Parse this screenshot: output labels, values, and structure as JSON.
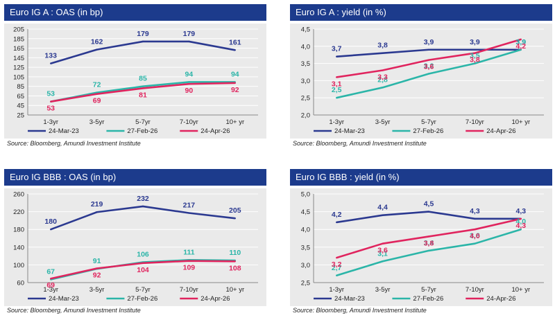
{
  "colors": {
    "header_bg": "#1c3b8c",
    "plot_bg": "#eaeaea",
    "grid": "#ffffff",
    "series": [
      "#2b3990",
      "#2bb5a8",
      "#e0245e"
    ],
    "label_colors": [
      "#2b3990",
      "#2bb5a8",
      "#e0245e"
    ]
  },
  "chart_data": [
    {
      "type": "line",
      "title": "Euro IG A : OAS (in bp)",
      "source": "Source: Bloomberg, Amundi Investment Institute",
      "categories": [
        "1-3yr",
        "3-5yr",
        "5-7yr",
        "7-10yr",
        "10+ yr"
      ],
      "yticks": [
        "25",
        "45",
        "65",
        "85",
        "105",
        "125",
        "145",
        "165",
        "185",
        "205"
      ],
      "ylim": [
        25,
        205
      ],
      "grid": true,
      "legend_position": "bottom",
      "series": [
        {
          "name": "24-Mar-23",
          "values": [
            133,
            162,
            179,
            179,
            161
          ],
          "labels": [
            "133",
            "162",
            "179",
            "179",
            "161"
          ]
        },
        {
          "name": "27-Feb-26",
          "values": [
            53,
            72,
            85,
            94,
            94
          ],
          "labels": [
            "53",
            "72",
            "85",
            "94",
            "94"
          ]
        },
        {
          "name": "24-Apr-26",
          "values": [
            53,
            69,
            81,
            90,
            92
          ],
          "labels": [
            "53",
            "69",
            "81",
            "90",
            "92"
          ]
        }
      ]
    },
    {
      "type": "line",
      "title": "Euro IG A : yield (in %)",
      "source": "Source: Bloomberg, Amundi Investment Institute",
      "categories": [
        "1-3yr",
        "3-5yr",
        "5-7yr",
        "7-10yr",
        "10+ yr"
      ],
      "yticks": [
        "2,0",
        "2,5",
        "3,0",
        "3,5",
        "4,0",
        "4,5"
      ],
      "ylim": [
        2.0,
        4.5
      ],
      "grid": true,
      "legend_position": "bottom",
      "series": [
        {
          "name": "24-Mar-23",
          "values": [
            3.7,
            3.8,
            3.9,
            3.9,
            3.9
          ],
          "labels": [
            "3,7",
            "3,8",
            "3,9",
            "3,9",
            "3,9"
          ]
        },
        {
          "name": "27-Feb-26",
          "values": [
            2.5,
            2.8,
            3.2,
            3.5,
            3.9
          ],
          "labels": [
            "2,5",
            "2,8",
            "3,2",
            "3,5",
            "3,9"
          ]
        },
        {
          "name": "24-Apr-26",
          "values": [
            3.1,
            3.3,
            3.6,
            3.8,
            4.2
          ],
          "labels": [
            "3,1",
            "3,3",
            "3,6",
            "3,8",
            "4,2"
          ]
        }
      ]
    },
    {
      "type": "line",
      "title": "Euro IG BBB : OAS (in bp)",
      "source": "Source: Bloomberg, Amundi Investment Institute",
      "categories": [
        "1-3yr",
        "3-5yr",
        "5-7yr",
        "7-10yr",
        "10+ yr"
      ],
      "yticks": [
        "60",
        "100",
        "140",
        "180",
        "220",
        "260"
      ],
      "ylim": [
        60,
        260
      ],
      "grid": true,
      "legend_position": "bottom",
      "series": [
        {
          "name": "24-Mar-23",
          "values": [
            180,
            219,
            232,
            217,
            205
          ],
          "labels": [
            "180",
            "219",
            "232",
            "217",
            "205"
          ]
        },
        {
          "name": "27-Feb-26",
          "values": [
            67,
            91,
            106,
            111,
            110
          ],
          "labels": [
            "67",
            "91",
            "106",
            "111",
            "110"
          ]
        },
        {
          "name": "24-Apr-26",
          "values": [
            69,
            92,
            104,
            109,
            108
          ],
          "labels": [
            "69",
            "92",
            "104",
            "109",
            "108"
          ]
        }
      ]
    },
    {
      "type": "line",
      "title": "Euro IG BBB : yield (in %)",
      "source": "Source: Bloomberg, Amundi Investment Institute",
      "categories": [
        "1-3yr",
        "3-5yr",
        "5-7yr",
        "7-10yr",
        "10+ yr"
      ],
      "yticks": [
        "2,5",
        "3,0",
        "3,5",
        "4,0",
        "4,5",
        "5,0"
      ],
      "ylim": [
        2.5,
        5.0
      ],
      "grid": true,
      "legend_position": "bottom",
      "series": [
        {
          "name": "24-Mar-23",
          "values": [
            4.2,
            4.4,
            4.5,
            4.3,
            4.3
          ],
          "labels": [
            "4,2",
            "4,4",
            "4,5",
            "4,3",
            "4,3"
          ]
        },
        {
          "name": "27-Feb-26",
          "values": [
            2.7,
            3.1,
            3.4,
            3.6,
            4.0
          ],
          "labels": [
            "2,7",
            "3,1",
            "3,4",
            "3,6",
            "4,0"
          ]
        },
        {
          "name": "24-Apr-26",
          "values": [
            3.2,
            3.6,
            3.8,
            4.0,
            4.3
          ],
          "labels": [
            "3,2",
            "3,6",
            "3,8",
            "4,0",
            "4,3"
          ]
        }
      ]
    }
  ]
}
